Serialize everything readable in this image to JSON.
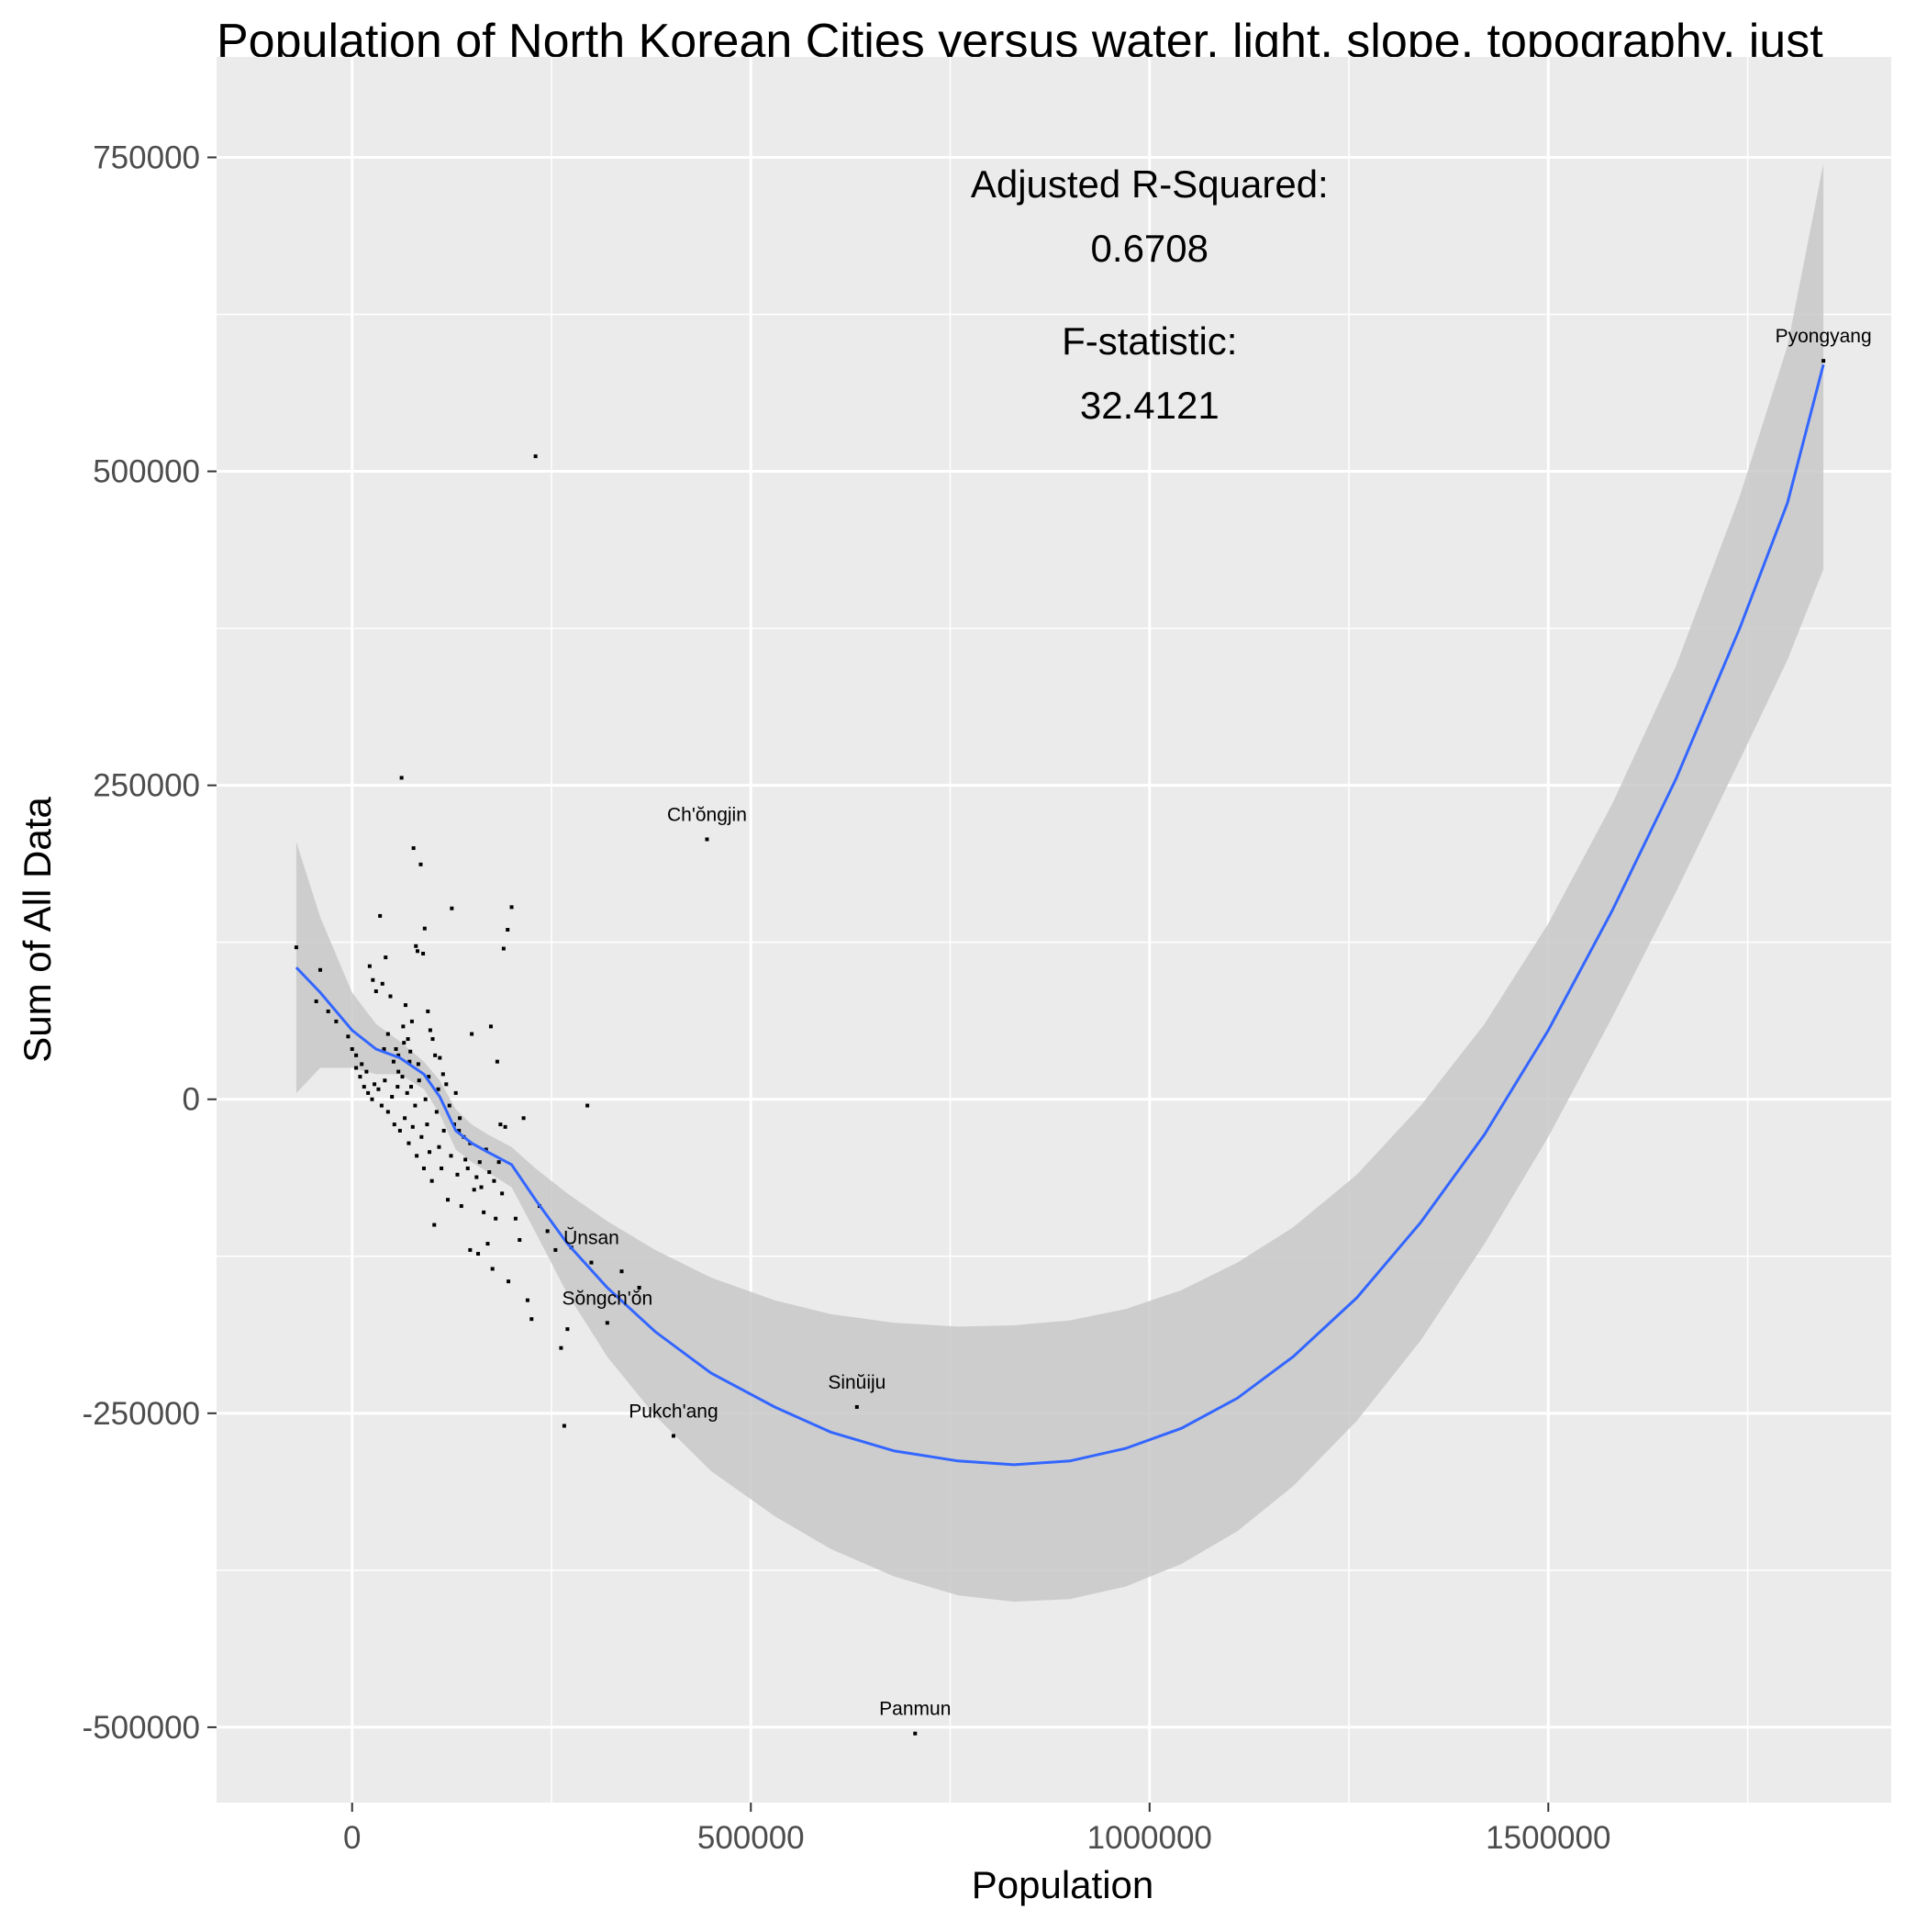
{
  "chart_data": {
    "type": "scatter",
    "title": "Population of North Korean Cities versus water, light, slope, topography, just",
    "xlabel": "Population",
    "ylabel": "Sum of All Data",
    "xlim": [
      -170000,
      1930000
    ],
    "ylim": [
      -560000,
      830000
    ],
    "xticks": [
      0,
      500000,
      1000000,
      1500000
    ],
    "xtick_labels": [
      "0",
      "500000",
      "1000000",
      "1500000"
    ],
    "yticks": [
      -500000,
      -250000,
      0,
      250000,
      500000,
      750000
    ],
    "ytick_labels": [
      "-500000",
      "-250000",
      "0",
      "250000",
      "500000",
      "750000"
    ],
    "grid": true,
    "legend": "none",
    "colors": {
      "panel": "#ebebeb",
      "grid": "#ffffff",
      "point": "#000000",
      "smooth": "#3366ff",
      "ribbon": "#c8c8c8"
    },
    "annotations": [
      {
        "lines": [
          "Adjusted R-Squared:",
          "0.6708"
        ],
        "x": 1000000,
        "y": 700000
      },
      {
        "lines": [
          "F-statistic:",
          "32.4121"
        ],
        "x": 1000000,
        "y": 575000
      }
    ],
    "labeled_points": [
      {
        "label": "Pyongyang",
        "x": 1845000,
        "y": 588000
      },
      {
        "label": "Ch'ŏngjin",
        "x": 445000,
        "y": 207000
      },
      {
        "label": "Ŭnsan",
        "x": 300000,
        "y": -130000
      },
      {
        "label": "Sŏngch'ŏn",
        "x": 320000,
        "y": -178000
      },
      {
        "label": "Sinŭiju",
        "x": 633000,
        "y": -245000
      },
      {
        "label": "Pukch'ang",
        "x": 403000,
        "y": -268000
      },
      {
        "label": "Panmun",
        "x": 706000,
        "y": -505000
      }
    ],
    "points": [
      [
        -70000,
        121000
      ],
      [
        -40000,
        103000
      ],
      [
        -45000,
        78000
      ],
      [
        -30000,
        70000
      ],
      [
        -20000,
        62000
      ],
      [
        -5000,
        50000
      ],
      [
        0,
        40000
      ],
      [
        5000,
        35000
      ],
      [
        12000,
        28000
      ],
      [
        18000,
        22000
      ],
      [
        22000,
        106000
      ],
      [
        26000,
        95000
      ],
      [
        30000,
        86000
      ],
      [
        35000,
        146000
      ],
      [
        38000,
        92000
      ],
      [
        42000,
        113000
      ],
      [
        48000,
        82000
      ],
      [
        55000,
        40000
      ],
      [
        58000,
        35000
      ],
      [
        62000,
        256000
      ],
      [
        64000,
        58000
      ],
      [
        67000,
        75000
      ],
      [
        70000,
        48000
      ],
      [
        72000,
        30000
      ],
      [
        75000,
        62000
      ],
      [
        77000,
        200000
      ],
      [
        80000,
        122000
      ],
      [
        82000,
        118000
      ],
      [
        86000,
        187000
      ],
      [
        89000,
        116000
      ],
      [
        91000,
        136000
      ],
      [
        95000,
        70000
      ],
      [
        98000,
        55000
      ],
      [
        101000,
        48000
      ],
      [
        104000,
        35000
      ],
      [
        110000,
        33000
      ],
      [
        114000,
        20000
      ],
      [
        118000,
        12000
      ],
      [
        125000,
        152000
      ],
      [
        130000,
        5000
      ],
      [
        135000,
        -15000
      ],
      [
        140000,
        -30000
      ],
      [
        145000,
        -55000
      ],
      [
        150000,
        52000
      ],
      [
        156000,
        -62000
      ],
      [
        162000,
        -70000
      ],
      [
        168000,
        -40000
      ],
      [
        174000,
        58000
      ],
      [
        178000,
        -65000
      ],
      [
        182000,
        30000
      ],
      [
        186000,
        -20000
      ],
      [
        190000,
        120000
      ],
      [
        195000,
        135000
      ],
      [
        200000,
        153000
      ],
      [
        205000,
        -95000
      ],
      [
        210000,
        -112000
      ],
      [
        215000,
        -15000
      ],
      [
        220000,
        -160000
      ],
      [
        225000,
        -175000
      ],
      [
        230000,
        512000
      ],
      [
        235000,
        -85000
      ],
      [
        245000,
        -105000
      ],
      [
        255000,
        -120000
      ],
      [
        262000,
        -198000
      ],
      [
        266000,
        -260000
      ],
      [
        270000,
        -183000
      ],
      [
        275000,
        -118000
      ],
      [
        295000,
        -5000
      ],
      [
        338000,
        -137000
      ],
      [
        360000,
        -150000
      ],
      [
        5000,
        25000
      ],
      [
        10000,
        18000
      ],
      [
        15000,
        10000
      ],
      [
        20000,
        5000
      ],
      [
        25000,
        0
      ],
      [
        28000,
        12000
      ],
      [
        33000,
        8000
      ],
      [
        37000,
        -5000
      ],
      [
        41000,
        15000
      ],
      [
        45000,
        -10000
      ],
      [
        50000,
        2000
      ],
      [
        53000,
        -20000
      ],
      [
        57000,
        10000
      ],
      [
        60000,
        -25000
      ],
      [
        63000,
        18000
      ],
      [
        66000,
        -15000
      ],
      [
        69000,
        5000
      ],
      [
        71000,
        -35000
      ],
      [
        74000,
        10000
      ],
      [
        76000,
        -22000
      ],
      [
        79000,
        -5000
      ],
      [
        81000,
        -45000
      ],
      [
        84000,
        15000
      ],
      [
        87000,
        -30000
      ],
      [
        90000,
        -55000
      ],
      [
        92000,
        0
      ],
      [
        94000,
        -20000
      ],
      [
        97000,
        -42000
      ],
      [
        100000,
        -65000
      ],
      [
        103000,
        -100000
      ],
      [
        106000,
        -10000
      ],
      [
        109000,
        -38000
      ],
      [
        112000,
        -55000
      ],
      [
        115000,
        -25000
      ],
      [
        120000,
        -80000
      ],
      [
        124000,
        -45000
      ],
      [
        128000,
        -20000
      ],
      [
        132000,
        -60000
      ],
      [
        137000,
        -85000
      ],
      [
        142000,
        -48000
      ],
      [
        148000,
        -120000
      ],
      [
        153000,
        -72000
      ],
      [
        158000,
        -123000
      ],
      [
        165000,
        -90000
      ],
      [
        170000,
        -115000
      ],
      [
        176000,
        -135000
      ],
      [
        180000,
        -95000
      ],
      [
        184000,
        -50000
      ],
      [
        188000,
        -75000
      ],
      [
        196000,
        -145000
      ],
      [
        40000,
        40000
      ],
      [
        45000,
        52000
      ],
      [
        52000,
        30000
      ],
      [
        58000,
        22000
      ],
      [
        65000,
        45000
      ],
      [
        73000,
        38000
      ],
      [
        83000,
        28000
      ],
      [
        96000,
        18000
      ],
      [
        108000,
        8000
      ],
      [
        122000,
        -5000
      ],
      [
        134000,
        -25000
      ],
      [
        148000,
        -35000
      ],
      [
        160000,
        -50000
      ],
      [
        172000,
        -58000
      ],
      [
        192000,
        -22000
      ]
    ],
    "smooth": {
      "x": [
        -70000,
        -40000,
        0,
        30000,
        60000,
        90000,
        110000,
        130000,
        150000,
        170000,
        200000,
        230000,
        270000,
        320000,
        380000,
        450000,
        530000,
        600000,
        680000,
        760000,
        830000,
        900000,
        970000,
        1040000,
        1110000,
        1180000,
        1260000,
        1340000,
        1420000,
        1500000,
        1580000,
        1660000,
        1740000,
        1800000,
        1845000
      ],
      "y": [
        105000,
        85000,
        55000,
        40000,
        33000,
        20000,
        2000,
        -25000,
        -35000,
        -42000,
        -52000,
        -80000,
        -115000,
        -150000,
        -185000,
        -218000,
        -245000,
        -265000,
        -280000,
        -288000,
        -291000,
        -288000,
        -278000,
        -262000,
        -238000,
        -205000,
        -158000,
        -98000,
        -28000,
        55000,
        150000,
        255000,
        375000,
        475000,
        585000
      ],
      "upper": [
        205000,
        145000,
        85000,
        60000,
        46000,
        30000,
        15000,
        -8000,
        -20000,
        -28000,
        -38000,
        -55000,
        -75000,
        -97000,
        -120000,
        -142000,
        -160000,
        -171000,
        -178000,
        -181000,
        -180000,
        -176000,
        -167000,
        -152000,
        -130000,
        -102000,
        -60000,
        -5000,
        60000,
        140000,
        235000,
        345000,
        480000,
        600000,
        745000
      ],
      "lower": [
        5000,
        25000,
        25000,
        20000,
        20000,
        8000,
        -12000,
        -40000,
        -50000,
        -58000,
        -70000,
        -106000,
        -155000,
        -205000,
        -252000,
        -296000,
        -332000,
        -358000,
        -380000,
        -395000,
        -400000,
        -398000,
        -388000,
        -370000,
        -344000,
        -308000,
        -256000,
        -192000,
        -115000,
        -30000,
        65000,
        165000,
        270000,
        350000,
        422000
      ]
    }
  }
}
